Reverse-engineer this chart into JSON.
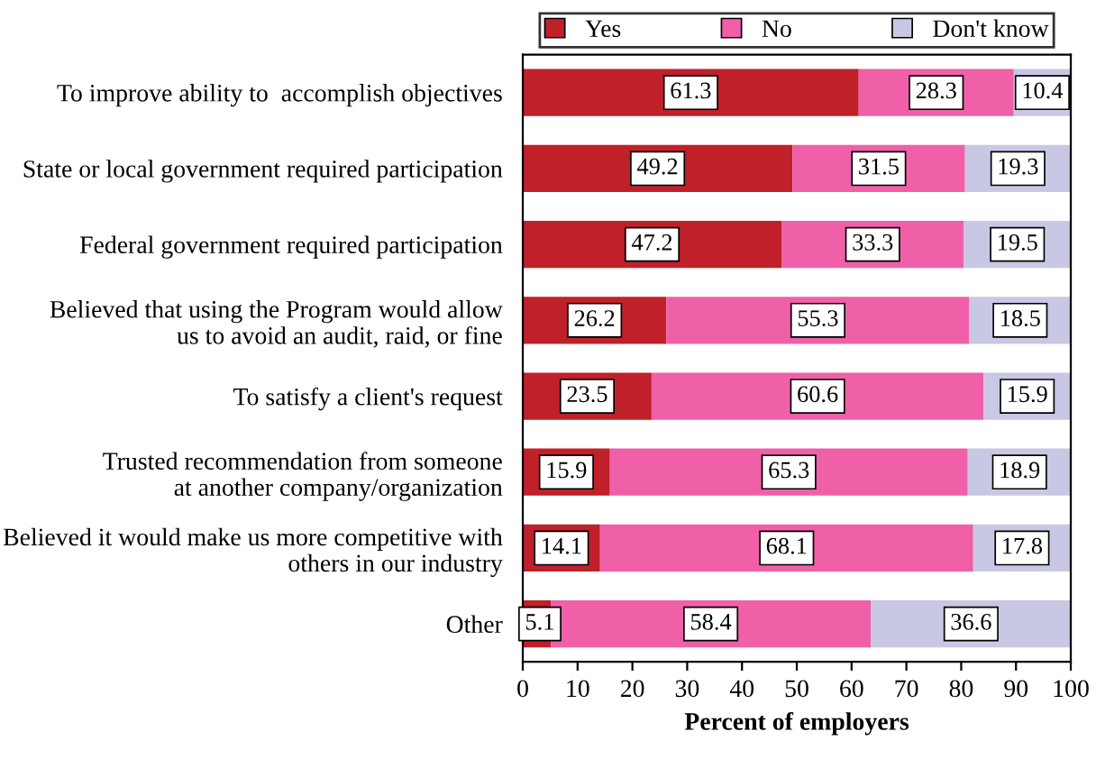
{
  "chart_data": {
    "type": "bar",
    "orientation": "horizontal",
    "stacked": true,
    "categories": [
      "To improve ability to  accomplish objectives",
      "State or local government required participation",
      "Federal government required participation",
      "Believed that using the Program would allow\nus to avoid an audit, raid, or fine",
      "To satisfy a client's request",
      "Trusted recommendation from someone\nat another company/organization",
      "Believed it would make us more competitive with\nothers in our industry",
      "Other"
    ],
    "series": [
      {
        "name": "Yes",
        "color": "#c0202a",
        "values": [
          61.3,
          49.2,
          47.2,
          26.2,
          23.5,
          15.9,
          14.1,
          5.1
        ]
      },
      {
        "name": "No",
        "color": "#f060a8",
        "values": [
          28.3,
          31.5,
          33.3,
          55.3,
          60.6,
          65.3,
          68.1,
          58.4
        ]
      },
      {
        "name": "Don't know",
        "color": "#c8c8e4",
        "values": [
          10.4,
          19.3,
          19.5,
          18.5,
          15.9,
          18.9,
          17.8,
          36.6
        ]
      }
    ],
    "xlim": [
      0,
      100
    ],
    "xticks": [
      0,
      10,
      20,
      30,
      40,
      50,
      60,
      70,
      80,
      90,
      100
    ],
    "xlabel": "Percent of employers",
    "data_labels": true,
    "legend": "top",
    "grid": false
  }
}
